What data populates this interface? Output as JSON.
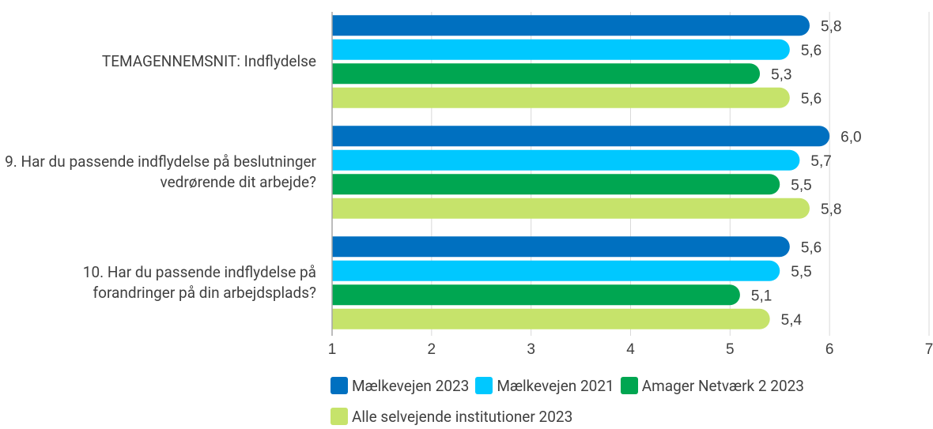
{
  "chart_data": {
    "type": "bar",
    "orientation": "horizontal",
    "categories": [
      "TEMAGENNEMSNIT: Indflydelse",
      "9. Har du passende indflydelse på beslutninger vedrørende dit arbejde?",
      "10. Har du passende indflydelse på forandringer på din arbejdsplads?"
    ],
    "series": [
      {
        "name": "Mælkevejen 2023",
        "color": "#0070c0",
        "values": [
          5.8,
          6.0,
          5.6
        ],
        "value_labels": [
          "5,8",
          "6,0",
          "5,6"
        ]
      },
      {
        "name": "Mælkevejen 2021",
        "color": "#00c8ff",
        "values": [
          5.6,
          5.7,
          5.5
        ],
        "value_labels": [
          "5,6",
          "5,7",
          "5,5"
        ]
      },
      {
        "name": "Amager Netværk 2 2023",
        "color": "#00a651",
        "values": [
          5.3,
          5.5,
          5.1
        ],
        "value_labels": [
          "5,3",
          "5,5",
          "5,1"
        ]
      },
      {
        "name": "Alle selvejende institutioner 2023",
        "color": "#c6e36b",
        "values": [
          5.6,
          5.8,
          5.4
        ],
        "value_labels": [
          "5,6",
          "5,8",
          "5,4"
        ]
      }
    ],
    "xlim": [
      1,
      7
    ],
    "xticks": [
      1,
      2,
      3,
      4,
      5,
      6,
      7
    ],
    "grid": true,
    "legend": "bottom"
  }
}
